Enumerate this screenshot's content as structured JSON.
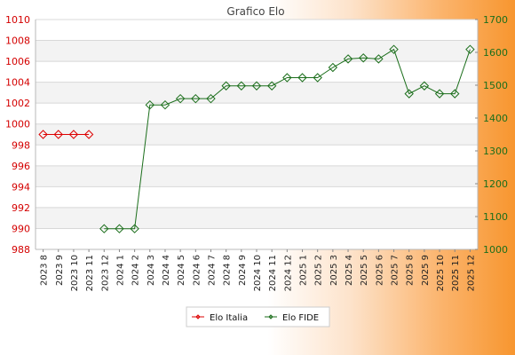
{
  "chart_data": {
    "type": "line",
    "title": "Grafico Elo",
    "categories": [
      "2023 8",
      "2023 9",
      "2023 10",
      "2023 11",
      "2023 12",
      "2024 1",
      "2024 2",
      "2024 3",
      "2024 4",
      "2024 5",
      "2024 6",
      "2024 7",
      "2024 8",
      "2024 9",
      "2024 10",
      "2024 11",
      "2024 12",
      "2025 1",
      "2025 2",
      "2025 3",
      "2025 4",
      "2025 5",
      "2025 6",
      "2025 7",
      "2025 8",
      "2025 9",
      "2025 10",
      "2025 11",
      "2025 12"
    ],
    "y_left": {
      "min": 988,
      "max": 1010,
      "ticks": [
        988,
        990,
        992,
        994,
        996,
        998,
        1000,
        1002,
        1004,
        1006,
        1008,
        1010
      ]
    },
    "y_right": {
      "min": 1000,
      "max": 1700,
      "ticks": [
        1000,
        1100,
        1200,
        1300,
        1400,
        1500,
        1600,
        1700
      ]
    },
    "grid": true,
    "series": [
      {
        "name": "Elo Italia",
        "axis": "left",
        "color": "#dd0000",
        "values": [
          999,
          999,
          999,
          999,
          null,
          null,
          null,
          null,
          null,
          null,
          null,
          null,
          null,
          null,
          null,
          null,
          null,
          null,
          null,
          null,
          null,
          null,
          null,
          null,
          null,
          null,
          null,
          null,
          null
        ]
      },
      {
        "name": "Elo FIDE",
        "axis": "right",
        "color": "#1b6e1b",
        "values": [
          null,
          null,
          null,
          null,
          1063,
          1063,
          1063,
          1440,
          1440,
          1459,
          1459,
          1459,
          1498,
          1498,
          1498,
          1498,
          1523,
          1523,
          1523,
          1554,
          1580,
          1583,
          1580,
          1609,
          1474,
          1498,
          1474,
          1474,
          1609
        ]
      }
    ],
    "legend_position": "bottom-center"
  }
}
